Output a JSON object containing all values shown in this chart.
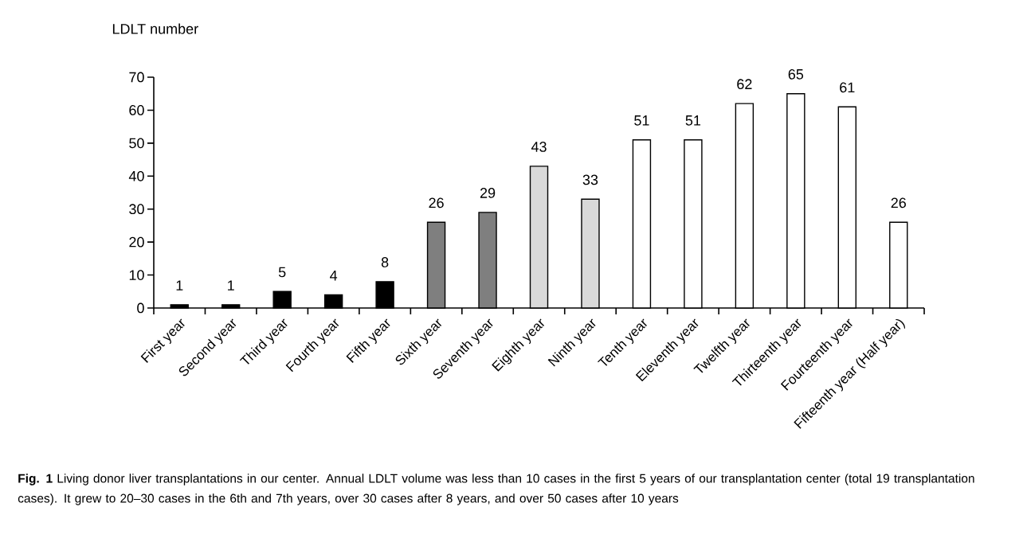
{
  "chart_data": {
    "type": "bar",
    "ylabel": "LDLT number",
    "categories": [
      "First year",
      "Second  year",
      "Third year",
      "Fourth year",
      "Fifth year",
      "Sixth year",
      "Seventh year",
      "Eighth year",
      "Ninth year",
      "Tenth year",
      "Eleventh year",
      "Twelfth year",
      "Thirteenth year",
      "Fourteenth year",
      "Fifteenth year (Half year)"
    ],
    "values": [
      1,
      1,
      5,
      4,
      8,
      26,
      29,
      43,
      33,
      51,
      51,
      62,
      65,
      61,
      26
    ],
    "colors": [
      "#000000",
      "#000000",
      "#000000",
      "#000000",
      "#000000",
      "#7f7f7f",
      "#7f7f7f",
      "#d9d9d9",
      "#d9d9d9",
      "#ffffff",
      "#ffffff",
      "#ffffff",
      "#ffffff",
      "#ffffff",
      "#ffffff"
    ],
    "ylim": [
      0,
      70
    ],
    "yticks": [
      0,
      10,
      20,
      30,
      40,
      50,
      60,
      70
    ],
    "data_labels": true,
    "grid": false,
    "annotations": [
      "**Fig. 1** Living donor liver transplantations in our center. Annual LDLT volume was less than 10 cases in the first 5 years of our transplantation center (total 19 transplantation cases). It grew to 20–30 cases in the 6th and 7th years, over 30 cases after 8 years, and over 50 cases after 10 years"
    ]
  }
}
